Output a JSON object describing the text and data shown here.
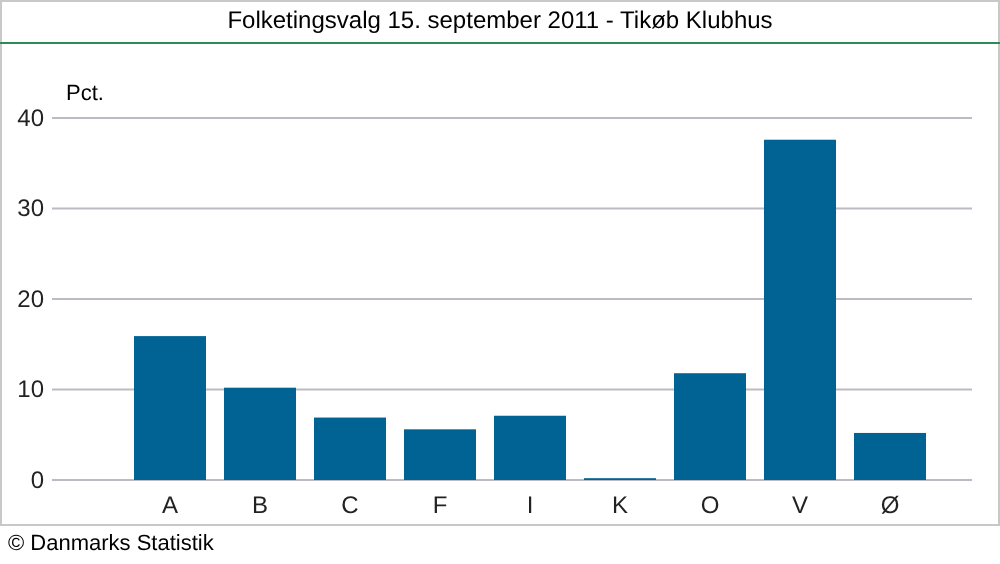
{
  "chart_data": {
    "type": "bar",
    "title": "Folketingsvalg 15. september 2011 - Tikøb Klubhus",
    "ylabel": "Pct.",
    "categories": [
      "A",
      "B",
      "C",
      "F",
      "I",
      "K",
      "O",
      "V",
      "Ø"
    ],
    "values": [
      15.9,
      10.2,
      6.9,
      5.6,
      7.1,
      0.2,
      11.8,
      37.6,
      5.2
    ],
    "color": "#006394",
    "ylim": [
      0,
      40
    ],
    "yticks": [
      0,
      10,
      20,
      30,
      40
    ],
    "grid": "y",
    "annotations": [
      "© Danmarks Statistik"
    ]
  }
}
